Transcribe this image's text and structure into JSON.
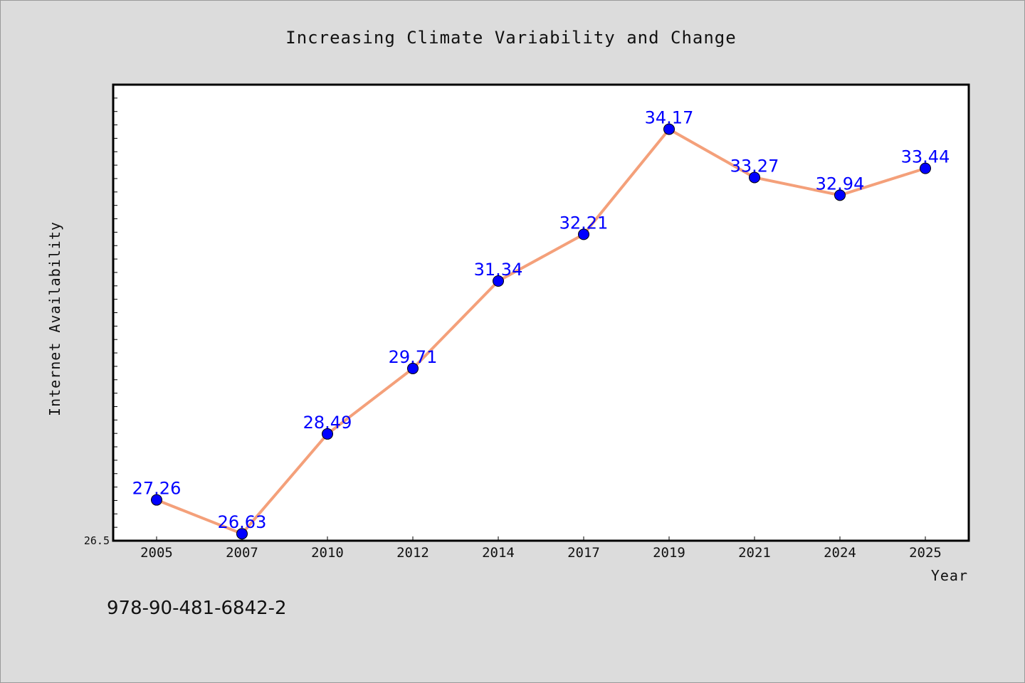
{
  "chart_data": {
    "type": "line",
    "title": "Increasing Climate Variability and Change",
    "xlabel": "Year",
    "ylabel": "Internet Availability",
    "categories": [
      "2005",
      "2007",
      "2010",
      "2012",
      "2014",
      "2017",
      "2019",
      "2021",
      "2024",
      "2025"
    ],
    "series": [
      {
        "values": [
          27.26,
          26.63,
          28.49,
          29.71,
          31.34,
          32.21,
          34.17,
          33.27,
          32.94,
          33.44
        ]
      }
    ],
    "data_labels": [
      "27.26",
      "26.63",
      "28.49",
      "29.71",
      "31.34",
      "32.21",
      "34.17",
      "33.27",
      "32.94",
      "33.44"
    ],
    "ylim": [
      26.5,
      35.0
    ],
    "y_tick_labels": [
      "26.5"
    ],
    "grid": false,
    "line_color": "#f4a07a",
    "marker_color": "#0000ff",
    "label_color": "#0000ff"
  },
  "footer": {
    "isbn": "978-90-481-6842-2"
  }
}
